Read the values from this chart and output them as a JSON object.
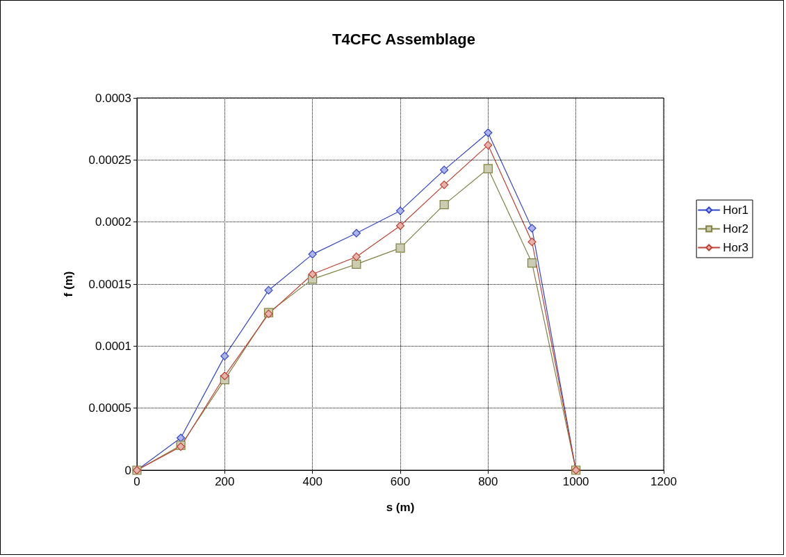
{
  "chart_data": {
    "type": "line",
    "title": "T4CFC Assemblage",
    "xlabel": "s (m)",
    "ylabel": "f (m)",
    "x": [
      0,
      100,
      200,
      300,
      400,
      500,
      600,
      700,
      800,
      900,
      1000
    ],
    "series": [
      {
        "name": "Hor1",
        "color": "#3344cc",
        "marker": "diamond",
        "values": [
          0,
          2.6e-05,
          9.2e-05,
          0.000145,
          0.000174,
          0.000191,
          0.000209,
          0.000242,
          0.000272,
          0.000195,
          0
        ]
      },
      {
        "name": "Hor2",
        "color": "#808040",
        "marker": "square",
        "values": [
          0,
          2e-05,
          7.3e-05,
          0.000127,
          0.000154,
          0.000166,
          0.000179,
          0.000214,
          0.000243,
          0.000167,
          0
        ]
      },
      {
        "name": "Hor3",
        "color": "#c04030",
        "marker": "diamond",
        "values": [
          0,
          1.9e-05,
          7.6e-05,
          0.000126,
          0.000158,
          0.000172,
          0.000197,
          0.00023,
          0.000262,
          0.000184,
          0
        ]
      }
    ],
    "xlim": [
      0,
      1200
    ],
    "xticks": [
      0,
      200,
      400,
      600,
      800,
      1000,
      1200
    ],
    "ylim": [
      0,
      0.0003
    ],
    "yticks": [
      0,
      {
        "value": 5e-05,
        "label": "0.00005"
      },
      0.0001,
      0.00015,
      0.0002,
      0.00025,
      0.0003
    ],
    "grid": true,
    "legend": "right",
    "line_style": "solid"
  }
}
